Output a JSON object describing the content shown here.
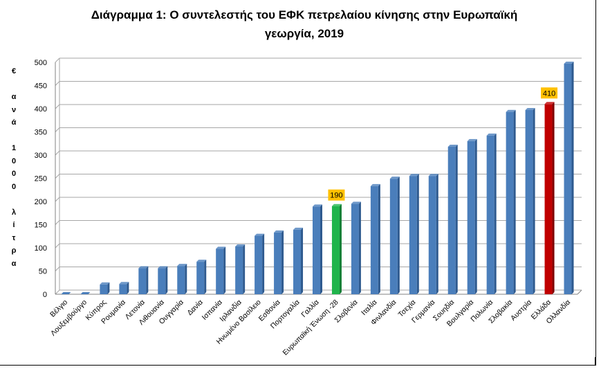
{
  "title_lines": [
    "Διάγραμμα 1: Ο συντελεστής του ΕΦΚ πετρελαίου κίνησης στην Ευρωπαϊκή",
    "γεωργία, 2019"
  ],
  "ylabel_chars": [
    "€",
    "",
    "α",
    "ν",
    "ά",
    "",
    "1",
    "0",
    "0",
    "0",
    "",
    "λ",
    "ί",
    "τ",
    "ρ",
    "α"
  ],
  "colors": {
    "default_bar": "#4a7ebb",
    "default_bar_dark": "#2e5a8f",
    "eu_bar": "#1fb44b",
    "eu_bar_dark": "#148035",
    "greece_bar": "#c00000",
    "greece_bar_dark": "#800000",
    "label_bg": "#ffc000",
    "grid": "#a6a6a6"
  },
  "chart_data": {
    "type": "bar",
    "title": "Διάγραμμα 1: Ο συντελεστής του ΕΦΚ πετρελαίου κίνησης στην Ευρωπαϊκή γεωργία, 2019",
    "xlabel": "",
    "ylabel": "€ ανά 1000 λίτρα",
    "ylim": [
      0,
      500
    ],
    "yticks": [
      0,
      50,
      100,
      150,
      200,
      250,
      300,
      350,
      400,
      450,
      500
    ],
    "grid": true,
    "categories": [
      "Βέλγιο",
      "Λουξεμβούργο",
      "Κύπρος",
      "Ρουμανία",
      "Λετονία",
      "Λιθουανία",
      "Ουγγαρία",
      "Δανία",
      "Ισπανία",
      "Ιρλανδία",
      "Ηνωμένο Βασίλειο",
      "Εσθονία",
      "Πορτογαλία",
      "Γαλλία",
      "Ευρωπαϊκή Ένωση -28",
      "Σλοβενία",
      "Ιταλία",
      "Φινλανδία",
      "Τσεχία",
      "Γερμανία",
      "Σουηδία",
      "Βουλγαρία",
      "Πολωνία",
      "Σλοβακία",
      "Αυστρία",
      "Ελλάδα",
      "Ολλανδία"
    ],
    "values": [
      0,
      0,
      21,
      22,
      56,
      56,
      61,
      70,
      98,
      103,
      126,
      133,
      139,
      189,
      190,
      195,
      233,
      249,
      255,
      255,
      318,
      330,
      342,
      393,
      397,
      410,
      497
    ],
    "highlight": {
      "Ευρωπαϊκή Ένωση -28": "eu",
      "Ελλάδα": "greece"
    },
    "data_labels": [
      {
        "category": "Ευρωπαϊκή Ένωση -28",
        "text": "190"
      },
      {
        "category": "Ελλάδα",
        "text": "410"
      }
    ]
  }
}
